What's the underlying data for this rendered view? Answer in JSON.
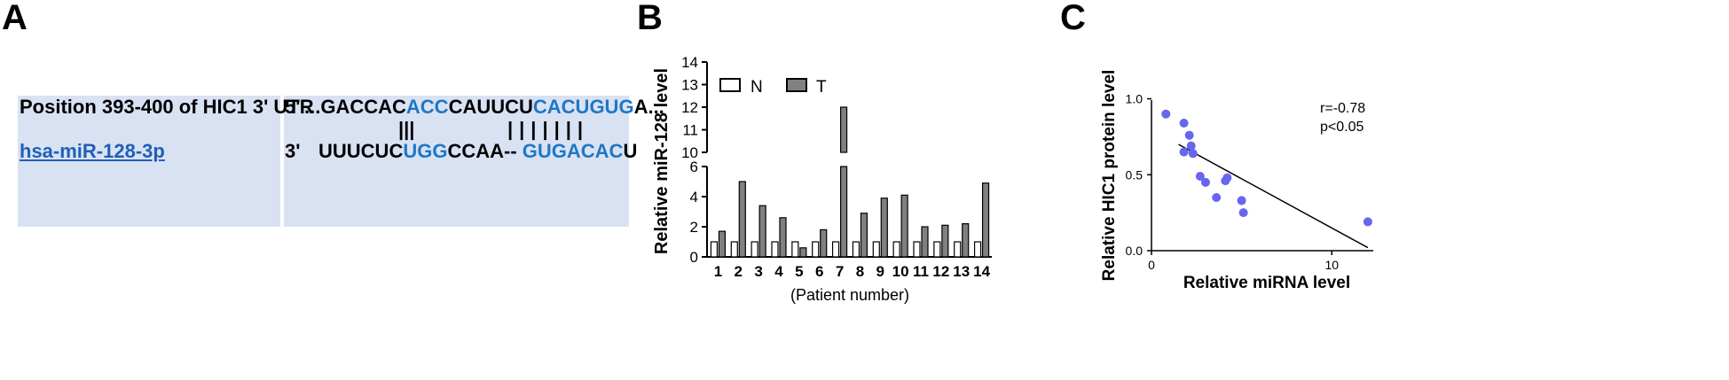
{
  "panel_a": {
    "letter": "A",
    "row1_label": "Position 393-400 of HIC1 3' UTR",
    "row1_prime": "5'",
    "row1_seq": [
      {
        "t": "...GACCAC",
        "blue": false
      },
      {
        "t": "ACC",
        "blue": true
      },
      {
        "t": "CAUUCU",
        "blue": false
      },
      {
        "t": "CACUGUG",
        "blue": true
      },
      {
        "t": "A...",
        "blue": false
      }
    ],
    "pairs1": "|||",
    "pairs2": "|||||||",
    "row2_label": "hsa-miR-128-3p",
    "row2_prime": "3'",
    "row2_seq": [
      {
        "t": "UUUCUC",
        "blue": false
      },
      {
        "t": "UGG",
        "blue": true
      },
      {
        "t": "CCAA-- ",
        "blue": false
      },
      {
        "t": "GUGACAC",
        "blue": true
      },
      {
        "t": "U",
        "blue": false
      }
    ]
  },
  "chart_data": [
    {
      "panel": "B",
      "type": "bar",
      "ylabel": "Relative miR-128 level",
      "xlabel": "(Patient number)",
      "categories": [
        "1",
        "2",
        "3",
        "4",
        "5",
        "6",
        "7",
        "8",
        "9",
        "10",
        "11",
        "12",
        "13",
        "14"
      ],
      "series": [
        {
          "name": "N",
          "color": "#ffffff",
          "values": [
            1,
            1,
            1,
            1,
            1,
            1,
            1,
            1,
            1,
            1,
            1,
            1,
            1,
            1
          ]
        },
        {
          "name": "T",
          "color": "#808080",
          "values": [
            1.7,
            5.0,
            3.4,
            2.6,
            0.6,
            1.8,
            12.0,
            2.9,
            3.9,
            4.1,
            2.0,
            2.1,
            2.2,
            4.9
          ]
        }
      ],
      "y_lower_ticks": [
        0,
        2,
        4,
        6
      ],
      "y_upper_ticks": [
        10,
        11,
        12,
        13,
        14
      ],
      "axis_break": [
        6,
        10
      ],
      "ylim": [
        0,
        14
      ],
      "legend_position": "top-left"
    },
    {
      "panel": "C",
      "type": "scatter",
      "xlabel": "Relative miRNA level",
      "ylabel": "Relative HIC1 protein level",
      "x_ticks": [
        0,
        10
      ],
      "y_ticks": [
        0.0,
        0.5,
        1.0
      ],
      "xlim": [
        0,
        12.3
      ],
      "ylim": [
        0,
        1.05
      ],
      "points": [
        {
          "x": 0.8,
          "y": 0.9
        },
        {
          "x": 1.8,
          "y": 0.84
        },
        {
          "x": 2.1,
          "y": 0.76
        },
        {
          "x": 2.2,
          "y": 0.69
        },
        {
          "x": 1.8,
          "y": 0.65
        },
        {
          "x": 2.3,
          "y": 0.64
        },
        {
          "x": 2.7,
          "y": 0.49
        },
        {
          "x": 3.0,
          "y": 0.45
        },
        {
          "x": 4.2,
          "y": 0.48
        },
        {
          "x": 4.1,
          "y": 0.46
        },
        {
          "x": 3.6,
          "y": 0.35
        },
        {
          "x": 5.0,
          "y": 0.33
        },
        {
          "x": 5.1,
          "y": 0.25
        },
        {
          "x": 12.0,
          "y": 0.19
        }
      ],
      "point_color": "#6666ee",
      "regression_line": {
        "x": [
          1.5,
          12.0
        ],
        "y": [
          0.7,
          0.02
        ]
      },
      "annotations": [
        "r=-0.78",
        "p<0.05"
      ]
    }
  ],
  "panel_letters": {
    "a": "A",
    "b": "B",
    "c": "C"
  }
}
